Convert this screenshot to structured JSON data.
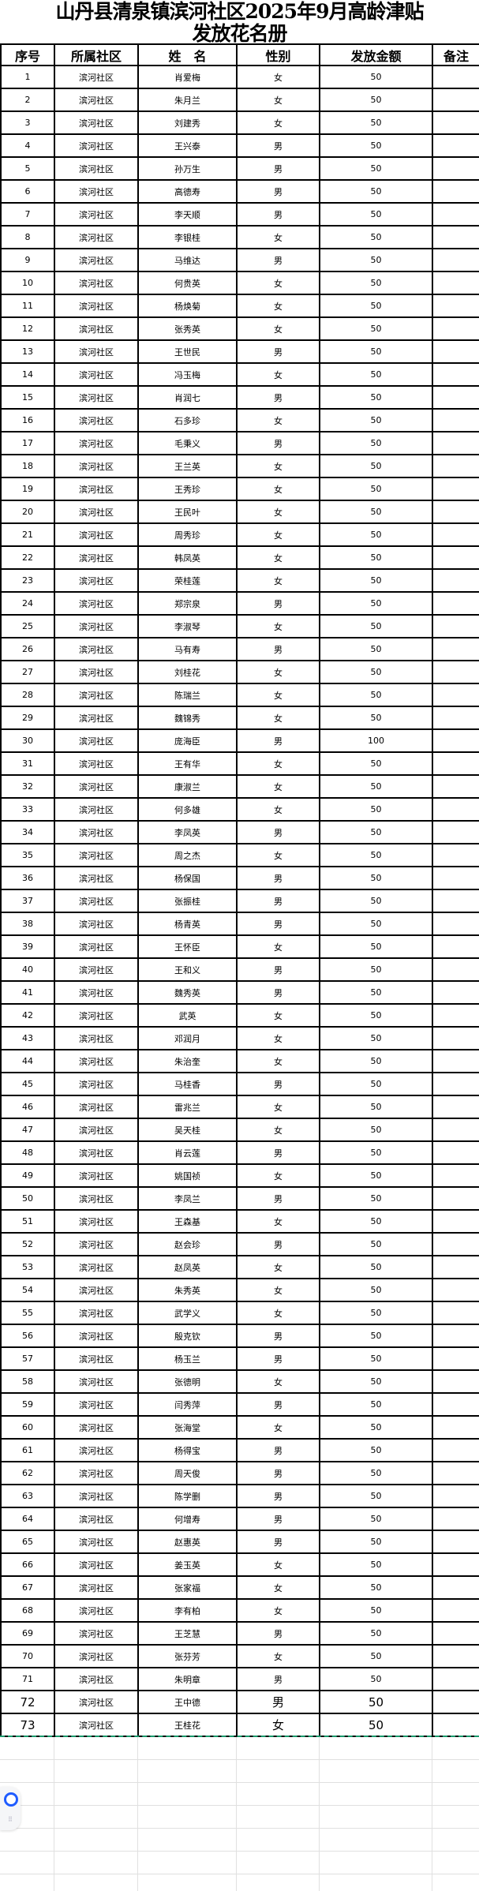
{
  "title": {
    "line1": "山丹县清泉镇滨河社区2025年9月高龄津贴",
    "line2": "发放花名册"
  },
  "headers": [
    "序号",
    "所属社区",
    "姓　名",
    "性别",
    "发放金额",
    "备注"
  ],
  "colors": {
    "border": "#000000",
    "dashed_selection": "#1a9a6c",
    "float_icon": "#1f5cff"
  },
  "rows": [
    {
      "no": "1",
      "community": "滨河社区",
      "name": "肖爱梅",
      "gender": "女",
      "amount": "50",
      "note": ""
    },
    {
      "no": "2",
      "community": "滨河社区",
      "name": "朱月兰",
      "gender": "女",
      "amount": "50",
      "note": ""
    },
    {
      "no": "3",
      "community": "滨河社区",
      "name": "刘建秀",
      "gender": "女",
      "amount": "50",
      "note": ""
    },
    {
      "no": "4",
      "community": "滨河社区",
      "name": "王兴泰",
      "gender": "男",
      "amount": "50",
      "note": ""
    },
    {
      "no": "5",
      "community": "滨河社区",
      "name": "孙万生",
      "gender": "男",
      "amount": "50",
      "note": ""
    },
    {
      "no": "6",
      "community": "滨河社区",
      "name": "高德寿",
      "gender": "男",
      "amount": "50",
      "note": ""
    },
    {
      "no": "7",
      "community": "滨河社区",
      "name": "李天顺",
      "gender": "男",
      "amount": "50",
      "note": ""
    },
    {
      "no": "8",
      "community": "滨河社区",
      "name": "李银桂",
      "gender": "女",
      "amount": "50",
      "note": ""
    },
    {
      "no": "9",
      "community": "滨河社区",
      "name": "马维达",
      "gender": "男",
      "amount": "50",
      "note": ""
    },
    {
      "no": "10",
      "community": "滨河社区",
      "name": "何贵英",
      "gender": "女",
      "amount": "50",
      "note": ""
    },
    {
      "no": "11",
      "community": "滨河社区",
      "name": "杨焕菊",
      "gender": "女",
      "amount": "50",
      "note": ""
    },
    {
      "no": "12",
      "community": "滨河社区",
      "name": "张秀英",
      "gender": "女",
      "amount": "50",
      "note": ""
    },
    {
      "no": "13",
      "community": "滨河社区",
      "name": "王世民",
      "gender": "男",
      "amount": "50",
      "note": ""
    },
    {
      "no": "14",
      "community": "滨河社区",
      "name": "冯玉梅",
      "gender": "女",
      "amount": "50",
      "note": ""
    },
    {
      "no": "15",
      "community": "滨河社区",
      "name": "肖润七",
      "gender": "男",
      "amount": "50",
      "note": ""
    },
    {
      "no": "16",
      "community": "滨河社区",
      "name": "石多珍",
      "gender": "女",
      "amount": "50",
      "note": ""
    },
    {
      "no": "17",
      "community": "滨河社区",
      "name": "毛秉义",
      "gender": "男",
      "amount": "50",
      "note": ""
    },
    {
      "no": "18",
      "community": "滨河社区",
      "name": "王兰英",
      "gender": "女",
      "amount": "50",
      "note": ""
    },
    {
      "no": "19",
      "community": "滨河社区",
      "name": "王秀珍",
      "gender": "女",
      "amount": "50",
      "note": ""
    },
    {
      "no": "20",
      "community": "滨河社区",
      "name": "王民叶",
      "gender": "女",
      "amount": "50",
      "note": ""
    },
    {
      "no": "21",
      "community": "滨河社区",
      "name": "周秀珍",
      "gender": "女",
      "amount": "50",
      "note": ""
    },
    {
      "no": "22",
      "community": "滨河社区",
      "name": "韩凤英",
      "gender": "女",
      "amount": "50",
      "note": ""
    },
    {
      "no": "23",
      "community": "滨河社区",
      "name": "荣桂莲",
      "gender": "女",
      "amount": "50",
      "note": ""
    },
    {
      "no": "24",
      "community": "滨河社区",
      "name": "郑宗泉",
      "gender": "男",
      "amount": "50",
      "note": ""
    },
    {
      "no": "25",
      "community": "滨河社区",
      "name": "李淑琴",
      "gender": "女",
      "amount": "50",
      "note": ""
    },
    {
      "no": "26",
      "community": "滨河社区",
      "name": "马有寿",
      "gender": "男",
      "amount": "50",
      "note": ""
    },
    {
      "no": "27",
      "community": "滨河社区",
      "name": "刘桂花",
      "gender": "女",
      "amount": "50",
      "note": ""
    },
    {
      "no": "28",
      "community": "滨河社区",
      "name": "陈瑞兰",
      "gender": "女",
      "amount": "50",
      "note": ""
    },
    {
      "no": "29",
      "community": "滨河社区",
      "name": "魏锦秀",
      "gender": "女",
      "amount": "50",
      "note": ""
    },
    {
      "no": "30",
      "community": "滨河社区",
      "name": "庞海臣",
      "gender": "男",
      "amount": "100",
      "note": ""
    },
    {
      "no": "31",
      "community": "滨河社区",
      "name": "王有华",
      "gender": "女",
      "amount": "50",
      "note": ""
    },
    {
      "no": "32",
      "community": "滨河社区",
      "name": "康淑兰",
      "gender": "女",
      "amount": "50",
      "note": ""
    },
    {
      "no": "33",
      "community": "滨河社区",
      "name": "何多雄",
      "gender": "女",
      "amount": "50",
      "note": ""
    },
    {
      "no": "34",
      "community": "滨河社区",
      "name": "李凤英",
      "gender": "男",
      "amount": "50",
      "note": ""
    },
    {
      "no": "35",
      "community": "滨河社区",
      "name": "周之杰",
      "gender": "女",
      "amount": "50",
      "note": ""
    },
    {
      "no": "36",
      "community": "滨河社区",
      "name": "杨保国",
      "gender": "男",
      "amount": "50",
      "note": ""
    },
    {
      "no": "37",
      "community": "滨河社区",
      "name": "张振桂",
      "gender": "男",
      "amount": "50",
      "note": ""
    },
    {
      "no": "38",
      "community": "滨河社区",
      "name": "杨青英",
      "gender": "男",
      "amount": "50",
      "note": ""
    },
    {
      "no": "39",
      "community": "滨河社区",
      "name": "王怀臣",
      "gender": "女",
      "amount": "50",
      "note": ""
    },
    {
      "no": "40",
      "community": "滨河社区",
      "name": "王和义",
      "gender": "男",
      "amount": "50",
      "note": ""
    },
    {
      "no": "41",
      "community": "滨河社区",
      "name": "魏秀英",
      "gender": "男",
      "amount": "50",
      "note": ""
    },
    {
      "no": "42",
      "community": "滨河社区",
      "name": "武英",
      "gender": "女",
      "amount": "50",
      "note": ""
    },
    {
      "no": "43",
      "community": "滨河社区",
      "name": "邓润月",
      "gender": "女",
      "amount": "50",
      "note": ""
    },
    {
      "no": "44",
      "community": "滨河社区",
      "name": "朱治奎",
      "gender": "女",
      "amount": "50",
      "note": ""
    },
    {
      "no": "45",
      "community": "滨河社区",
      "name": "马桂香",
      "gender": "男",
      "amount": "50",
      "note": ""
    },
    {
      "no": "46",
      "community": "滨河社区",
      "name": "雷兆兰",
      "gender": "女",
      "amount": "50",
      "note": ""
    },
    {
      "no": "47",
      "community": "滨河社区",
      "name": "吴天桂",
      "gender": "女",
      "amount": "50",
      "note": ""
    },
    {
      "no": "48",
      "community": "滨河社区",
      "name": "肖云莲",
      "gender": "男",
      "amount": "50",
      "note": ""
    },
    {
      "no": "49",
      "community": "滨河社区",
      "name": "姚国祯",
      "gender": "女",
      "amount": "50",
      "note": ""
    },
    {
      "no": "50",
      "community": "滨河社区",
      "name": "李凤兰",
      "gender": "男",
      "amount": "50",
      "note": ""
    },
    {
      "no": "51",
      "community": "滨河社区",
      "name": "王森基",
      "gender": "女",
      "amount": "50",
      "note": ""
    },
    {
      "no": "52",
      "community": "滨河社区",
      "name": "赵会珍",
      "gender": "男",
      "amount": "50",
      "note": ""
    },
    {
      "no": "53",
      "community": "滨河社区",
      "name": "赵凤英",
      "gender": "女",
      "amount": "50",
      "note": ""
    },
    {
      "no": "54",
      "community": "滨河社区",
      "name": "朱秀英",
      "gender": "女",
      "amount": "50",
      "note": ""
    },
    {
      "no": "55",
      "community": "滨河社区",
      "name": "武学义",
      "gender": "女",
      "amount": "50",
      "note": ""
    },
    {
      "no": "56",
      "community": "滨河社区",
      "name": "殷克钦",
      "gender": "男",
      "amount": "50",
      "note": ""
    },
    {
      "no": "57",
      "community": "滨河社区",
      "name": "杨玉兰",
      "gender": "男",
      "amount": "50",
      "note": ""
    },
    {
      "no": "58",
      "community": "滨河社区",
      "name": "张德明",
      "gender": "女",
      "amount": "50",
      "note": ""
    },
    {
      "no": "59",
      "community": "滨河社区",
      "name": "闫秀萍",
      "gender": "男",
      "amount": "50",
      "note": ""
    },
    {
      "no": "60",
      "community": "滨河社区",
      "name": "张海堂",
      "gender": "女",
      "amount": "50",
      "note": ""
    },
    {
      "no": "61",
      "community": "滨河社区",
      "name": "杨得宝",
      "gender": "男",
      "amount": "50",
      "note": ""
    },
    {
      "no": "62",
      "community": "滨河社区",
      "name": "周天俊",
      "gender": "男",
      "amount": "50",
      "note": ""
    },
    {
      "no": "63",
      "community": "滨河社区",
      "name": "陈学删",
      "gender": "男",
      "amount": "50",
      "note": ""
    },
    {
      "no": "64",
      "community": "滨河社区",
      "name": "何增寿",
      "gender": "男",
      "amount": "50",
      "note": ""
    },
    {
      "no": "65",
      "community": "滨河社区",
      "name": "赵惠英",
      "gender": "男",
      "amount": "50",
      "note": ""
    },
    {
      "no": "66",
      "community": "滨河社区",
      "name": "姜玉英",
      "gender": "女",
      "amount": "50",
      "note": ""
    },
    {
      "no": "67",
      "community": "滨河社区",
      "name": "张家福",
      "gender": "女",
      "amount": "50",
      "note": ""
    },
    {
      "no": "68",
      "community": "滨河社区",
      "name": "李有柏",
      "gender": "女",
      "amount": "50",
      "note": ""
    },
    {
      "no": "69",
      "community": "滨河社区",
      "name": "王芝慧",
      "gender": "男",
      "amount": "50",
      "note": ""
    },
    {
      "no": "70",
      "community": "滨河社区",
      "name": "张芬芳",
      "gender": "女",
      "amount": "50",
      "note": ""
    },
    {
      "no": "71",
      "community": "滨河社区",
      "name": "朱明章",
      "gender": "男",
      "amount": "50",
      "note": ""
    },
    {
      "no": "72",
      "community": "滨河社区",
      "name": "王中德",
      "gender": "男",
      "amount": "50",
      "note": ""
    },
    {
      "no": "73",
      "community": "滨河社区",
      "name": "王桂花",
      "gender": "女",
      "amount": "50",
      "note": ""
    }
  ]
}
